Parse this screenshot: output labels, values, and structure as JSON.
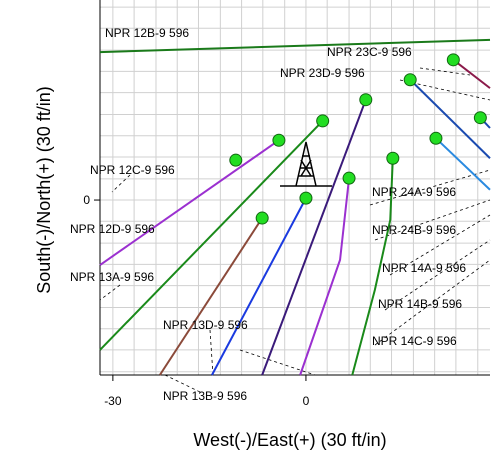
{
  "chart_data": {
    "type": "wellplot",
    "xlabel": "West(-)/East(+) (30 ft/in)",
    "ylabel": "South(-)/North(+) (30 ft/in)",
    "xlim": [
      -32,
      28.6
    ],
    "ylim": [
      -27.2,
      31.1
    ],
    "xticks": [
      -30,
      0
    ],
    "yticks": [
      0
    ],
    "xgrid": [
      -30,
      -26.7,
      -23.3,
      -20,
      -16.7,
      -13.3,
      -10,
      -6.7,
      -3.3,
      0,
      3.3,
      6.7,
      10,
      13.3,
      16.7,
      20,
      23.3,
      26.7
    ],
    "ygrid": [
      -26.7,
      -23.3,
      -20,
      -16.7,
      -13.3,
      -10,
      -6.7,
      -3.3,
      0,
      3.3,
      6.7,
      10,
      13.3,
      16.7,
      20,
      23.3,
      26.7,
      30
    ],
    "grid": true,
    "marker_color": "#22dd22",
    "series": [
      {
        "color": "#1a7a1a",
        "marker": false,
        "x": [
          -32,
          28.6
        ],
        "y": [
          23.0,
          24.9
        ]
      },
      {
        "color": "#8b1a4a",
        "marker": true,
        "x": [
          22.9,
          28.6
        ],
        "y": [
          21.8,
          17.4
        ]
      },
      {
        "color": "#1a4ab0",
        "marker": true,
        "x": [
          16.2,
          28.6
        ],
        "y": [
          18.7,
          6.5
        ]
      },
      {
        "color": "#1a4ab0",
        "marker": true,
        "x": [
          27.1,
          28.6
        ],
        "y": [
          12.8,
          11.2
        ]
      },
      {
        "color": "#2a8ae0",
        "marker": true,
        "x": [
          20.2,
          28.6
        ],
        "y": [
          9.6,
          1.6
        ]
      },
      {
        "color": "#1a8a1a",
        "marker": true,
        "x": [
          13.5,
          13.1,
          10.7,
          7.2
        ],
        "y": [
          6.5,
          -3.1,
          -14.0,
          -27.2
        ]
      },
      {
        "color": "#3a1a7a",
        "marker": true,
        "x": [
          9.3,
          -6.8
        ],
        "y": [
          15.6,
          -27.2
        ]
      },
      {
        "color": "#1a8a1a",
        "marker": true,
        "x": [
          2.6,
          -32
        ],
        "y": [
          12.3,
          -23.3
        ]
      },
      {
        "color": "#9b30d0",
        "marker": true,
        "x": [
          -4.2,
          -32
        ],
        "y": [
          9.3,
          -10.1
        ]
      },
      {
        "color": "#1a8a1a",
        "marker": true,
        "x": [
          -10.9
        ],
        "y": [
          6.2
        ]
      },
      {
        "color": "#9b30d0",
        "marker": true,
        "x": [
          6.7,
          5.3,
          -0.9
        ],
        "y": [
          3.4,
          -9.3,
          -27.2
        ]
      },
      {
        "color": "#1a3ae0",
        "marker": true,
        "x": [
          0,
          -14.6
        ],
        "y": [
          0.3,
          -27.2
        ]
      },
      {
        "color": "#8b4a3a",
        "marker": true,
        "x": [
          -6.8,
          -22.7
        ],
        "y": [
          -2.8,
          -27.2
        ]
      }
    ],
    "labels": [
      "NPR 12B-9 596",
      "NPR 23C-9 596",
      "NPR 23D-9 596",
      "NPR 12C-9 596",
      "NPR 24A-9 596",
      "NPR 12D-9 596",
      "NPR 24B-9 596",
      "NPR 14A-9 596",
      "NPR 13A-9 596",
      "NPR 14B-9 596",
      "NPR 13D-9 596",
      "NPR 14C-9 596",
      "NPR 13B-9 596"
    ]
  }
}
